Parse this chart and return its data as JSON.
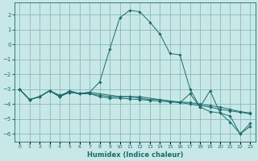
{
  "xlabel": "Humidex (Indice chaleur)",
  "background_color": "#c8e8e8",
  "grid_color": "#7ab0b0",
  "line_color": "#1a6b6b",
  "xlim": [
    -0.5,
    23.5
  ],
  "ylim": [
    -6.5,
    2.8
  ],
  "yticks": [
    2,
    1,
    0,
    -1,
    -2,
    -3,
    -4,
    -5,
    -6
  ],
  "xticks": [
    0,
    1,
    2,
    3,
    4,
    5,
    6,
    7,
    8,
    9,
    10,
    11,
    12,
    13,
    14,
    15,
    16,
    17,
    18,
    19,
    20,
    21,
    22,
    23
  ],
  "lines": [
    {
      "x": [
        0,
        1,
        2,
        3,
        4,
        5,
        6,
        7,
        8,
        9,
        10,
        11,
        12,
        13,
        14,
        15,
        16,
        17,
        18,
        19,
        20,
        21,
        22,
        23
      ],
      "y": [
        -3.0,
        -3.7,
        -3.5,
        -3.1,
        -3.5,
        -3.1,
        -3.3,
        -3.2,
        -2.5,
        -0.3,
        1.8,
        2.3,
        2.2,
        1.5,
        0.7,
        -0.6,
        -0.7,
        -3.0,
        -4.2,
        -3.1,
        -4.6,
        -5.2,
        -6.0,
        -5.5
      ]
    },
    {
      "x": [
        0,
        1,
        2,
        3,
        4,
        5,
        6,
        7,
        8,
        9,
        10,
        11,
        12,
        13,
        14,
        15,
        16,
        17,
        18,
        19,
        20,
        21,
        22,
        23
      ],
      "y": [
        -3.0,
        -3.7,
        -3.5,
        -3.1,
        -3.5,
        -3.2,
        -3.3,
        -3.3,
        -3.4,
        -3.5,
        -3.5,
        -3.5,
        -3.6,
        -3.7,
        -3.7,
        -3.8,
        -3.85,
        -3.9,
        -4.0,
        -4.1,
        -4.2,
        -4.35,
        -4.5,
        -4.6
      ]
    },
    {
      "x": [
        0,
        1,
        2,
        3,
        4,
        5,
        6,
        7,
        8,
        9,
        10,
        11,
        12,
        13,
        14,
        15,
        16,
        17,
        18,
        19,
        20,
        21,
        22,
        23
      ],
      "y": [
        -3.0,
        -3.7,
        -3.5,
        -3.1,
        -3.4,
        -3.2,
        -3.3,
        -3.3,
        -3.5,
        -3.6,
        -3.6,
        -3.65,
        -3.7,
        -3.75,
        -3.8,
        -3.85,
        -3.9,
        -4.0,
        -4.1,
        -4.2,
        -4.35,
        -4.45,
        -4.55,
        -4.65
      ]
    },
    {
      "x": [
        0,
        1,
        2,
        3,
        4,
        5,
        6,
        7,
        10,
        11,
        12,
        15,
        16,
        17,
        18,
        19,
        20,
        21,
        22,
        23
      ],
      "y": [
        -3.0,
        -3.7,
        -3.5,
        -3.1,
        -3.5,
        -3.2,
        -3.3,
        -3.2,
        -3.5,
        -3.5,
        -3.5,
        -3.8,
        -3.9,
        -3.3,
        -4.2,
        -4.5,
        -4.6,
        -4.8,
        -6.0,
        -5.3
      ]
    }
  ]
}
